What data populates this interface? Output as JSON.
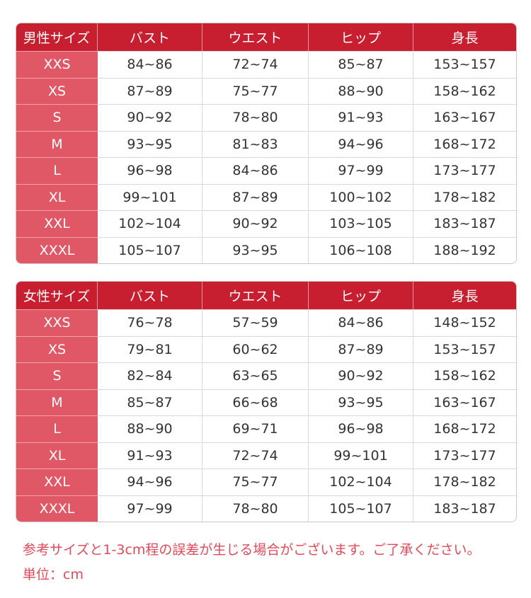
{
  "colors": {
    "header": "#c81f30",
    "size_column": "#e05866",
    "note_text": "#e04a5b"
  },
  "tables": [
    {
      "headers": [
        "男性サイズ",
        "バスト",
        "ウエスト",
        "ヒップ",
        "身長"
      ],
      "rows": [
        [
          "XXS",
          "84~86",
          "72~74",
          "85~87",
          "153~157"
        ],
        [
          "XS",
          "87~89",
          "75~77",
          "88~90",
          "158~162"
        ],
        [
          "S",
          "90~92",
          "78~80",
          "91~93",
          "163~167"
        ],
        [
          "M",
          "93~95",
          "81~83",
          "94~96",
          "168~172"
        ],
        [
          "L",
          "96~98",
          "84~86",
          "97~99",
          "173~177"
        ],
        [
          "XL",
          "99~101",
          "87~89",
          "100~102",
          "178~182"
        ],
        [
          "XXL",
          "102~104",
          "90~92",
          "103~105",
          "183~187"
        ],
        [
          "XXXL",
          "105~107",
          "93~95",
          "106~108",
          "188~192"
        ]
      ]
    },
    {
      "headers": [
        "女性サイズ",
        "バスト",
        "ウエスト",
        "ヒップ",
        "身長"
      ],
      "rows": [
        [
          "XXS",
          "76~78",
          "57~59",
          "84~86",
          "148~152"
        ],
        [
          "XS",
          "79~81",
          "60~62",
          "87~89",
          "153~157"
        ],
        [
          "S",
          "82~84",
          "63~65",
          "90~92",
          "158~162"
        ],
        [
          "M",
          "85~87",
          "66~68",
          "93~95",
          "163~167"
        ],
        [
          "L",
          "88~90",
          "69~71",
          "96~98",
          "168~172"
        ],
        [
          "XL",
          "91~93",
          "72~74",
          "99~101",
          "173~177"
        ],
        [
          "XXL",
          "94~96",
          "75~77",
          "102~104",
          "178~182"
        ],
        [
          "XXXL",
          "97~99",
          "78~80",
          "105~107",
          "183~187"
        ]
      ]
    }
  ],
  "notes": {
    "disclaimer": "参考サイズと1-3cm程の誤差が生じる場合がございます。ご了承ください。",
    "unit": "単位：cm"
  }
}
